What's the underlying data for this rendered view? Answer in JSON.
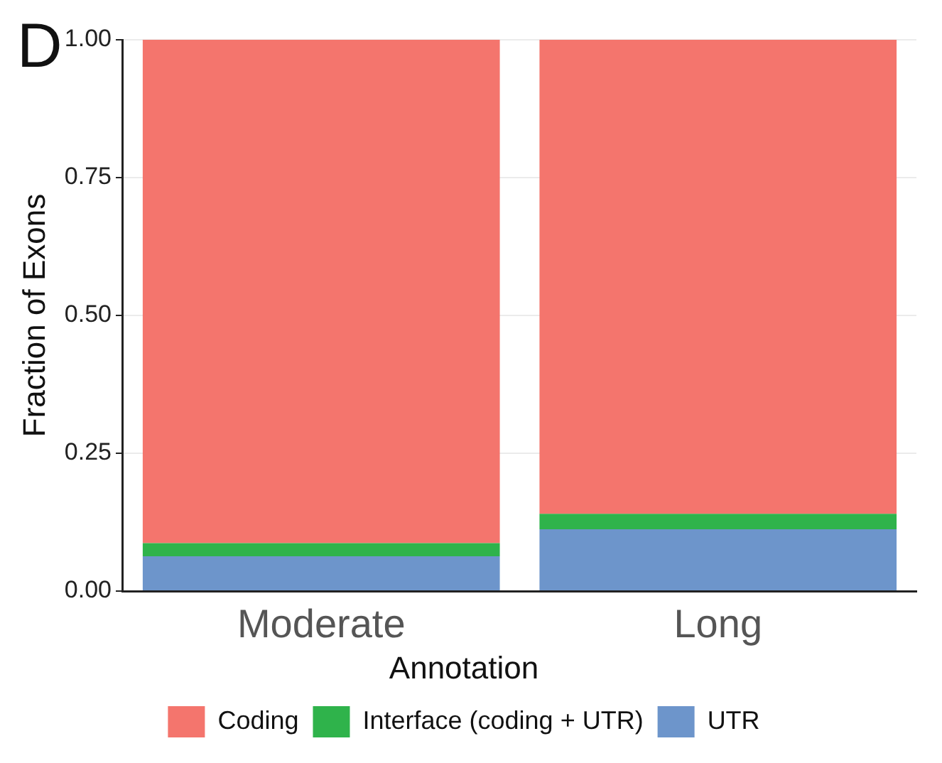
{
  "chart_data": {
    "type": "bar",
    "stacked": true,
    "ylabel": "Fraction of Exons",
    "legend_title": "Annotation",
    "legend": "bottom",
    "grid": "y",
    "annotations": [
      "D"
    ],
    "categories": [
      "Moderate",
      "Long"
    ],
    "series": [
      {
        "name": "UTR",
        "color": "#6d95cb",
        "values": [
          0.063,
          0.112
        ]
      },
      {
        "name": "Interface (coding + UTR)",
        "color": "#2fb34b",
        "values": [
          0.024,
          0.028
        ]
      },
      {
        "name": "Coding",
        "color": "#f4756d",
        "values": [
          0.913,
          0.86
        ]
      }
    ],
    "ylim": [
      0,
      1
    ],
    "yticks": [
      {
        "value": 0,
        "label": "0.00"
      },
      {
        "value": 0.25,
        "label": "0.25"
      },
      {
        "value": 0.5,
        "label": "0.50"
      },
      {
        "value": 0.75,
        "label": "0.75"
      },
      {
        "value": 1,
        "label": "1.00"
      }
    ]
  }
}
